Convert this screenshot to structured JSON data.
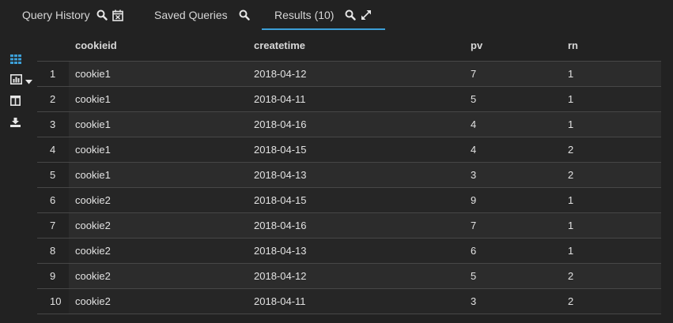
{
  "tabs": {
    "history": {
      "label": "Query History"
    },
    "saved": {
      "label": "Saved Queries"
    },
    "results": {
      "label": "Results (10)"
    }
  },
  "sidebar": {
    "items": [
      "grid-icon",
      "chart-icon",
      "columns-icon",
      "download-icon"
    ]
  },
  "colors": {
    "background": "#222222",
    "accent": "#3c9fd7",
    "text": "#dcdcdc"
  },
  "table": {
    "columns": [
      "cookieid",
      "createtime",
      "pv",
      "rn"
    ],
    "rows": [
      [
        "1",
        "cookie1",
        "2018-04-12",
        "7",
        "1"
      ],
      [
        "2",
        "cookie1",
        "2018-04-11",
        "5",
        "1"
      ],
      [
        "3",
        "cookie1",
        "2018-04-16",
        "4",
        "1"
      ],
      [
        "4",
        "cookie1",
        "2018-04-15",
        "4",
        "2"
      ],
      [
        "5",
        "cookie1",
        "2018-04-13",
        "3",
        "2"
      ],
      [
        "6",
        "cookie2",
        "2018-04-15",
        "9",
        "1"
      ],
      [
        "7",
        "cookie2",
        "2018-04-16",
        "7",
        "1"
      ],
      [
        "8",
        "cookie2",
        "2018-04-13",
        "6",
        "1"
      ],
      [
        "9",
        "cookie2",
        "2018-04-12",
        "5",
        "2"
      ],
      [
        "10",
        "cookie2",
        "2018-04-11",
        "3",
        "2"
      ]
    ]
  }
}
